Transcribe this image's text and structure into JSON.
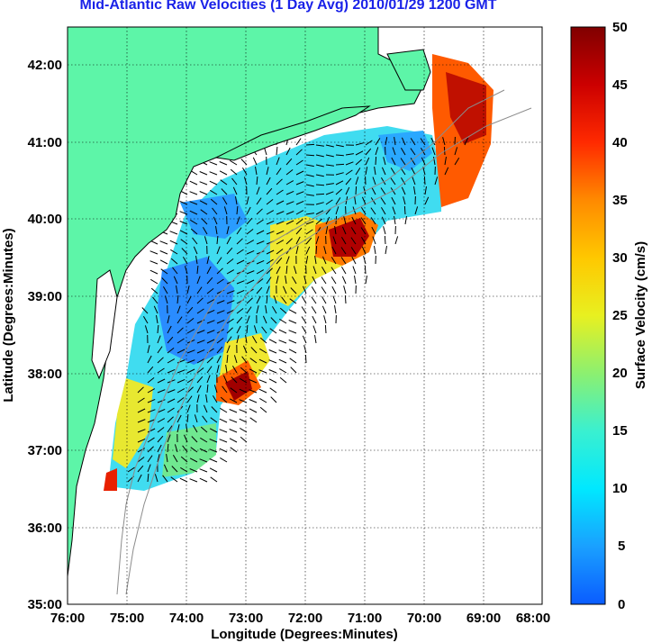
{
  "title": "Mid-Atlantic Raw Velocities (1 Day Avg) 2010/01/29 1200 GMT",
  "map": {
    "xlabel": "Longitude (Degrees:Minutes)",
    "ylabel": "Latitude (Degrees:Minutes)",
    "lon_ticks": [
      "76:00",
      "75:00",
      "74:00",
      "73:00",
      "72:00",
      "71:00",
      "70:00",
      "69:00",
      "68:00"
    ],
    "lat_ticks": [
      "42:00",
      "41:00",
      "40:00",
      "39:00",
      "38:00",
      "37:00",
      "36:00",
      "35:00"
    ],
    "lon_range": [
      -76,
      -68
    ],
    "lat_range": [
      35,
      42.5
    ],
    "grid": true
  },
  "colorbar": {
    "label": "Surface Velocity (cm/s)",
    "ticks": [
      "50",
      "45",
      "40",
      "35",
      "30",
      "25",
      "20",
      "15",
      "10",
      "5",
      "0"
    ],
    "range": [
      0,
      50
    ]
  },
  "colors": {
    "title": "#1a22e8",
    "land": "#5df5a8",
    "coast": "#000000",
    "bathymetry": "#8c8c8c"
  },
  "hotspots": [
    {
      "lon": -71.2,
      "lat": 39.7,
      "speed": 50
    },
    {
      "lon": -73.5,
      "lat": 37.8,
      "speed": 48
    },
    {
      "lon": -69.4,
      "lat": 41.5,
      "speed": 45
    }
  ]
}
